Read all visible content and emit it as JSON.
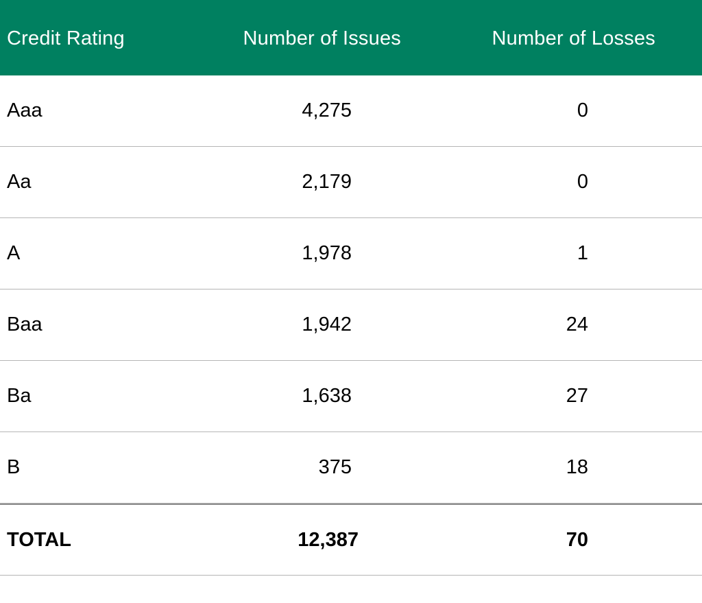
{
  "table": {
    "headers": {
      "rating": "Credit Rating",
      "issues": "Number of Issues",
      "losses": "Number of Losses"
    },
    "rows": [
      {
        "rating": "Aaa",
        "issues": "4,275",
        "losses": "0"
      },
      {
        "rating": "Aa",
        "issues": "2,179",
        "losses": "0"
      },
      {
        "rating": "A",
        "issues": "1,978",
        "losses": "1"
      },
      {
        "rating": "Baa",
        "issues": "1,942",
        "losses": "24"
      },
      {
        "rating": "Ba",
        "issues": "1,638",
        "losses": "27"
      },
      {
        "rating": "B",
        "issues": "375",
        "losses": "18"
      }
    ],
    "total": {
      "rating": "TOTAL",
      "issues": "12,387",
      "losses": "70"
    }
  },
  "colors": {
    "header_bg": "#008060",
    "header_text": "#ffffff"
  }
}
